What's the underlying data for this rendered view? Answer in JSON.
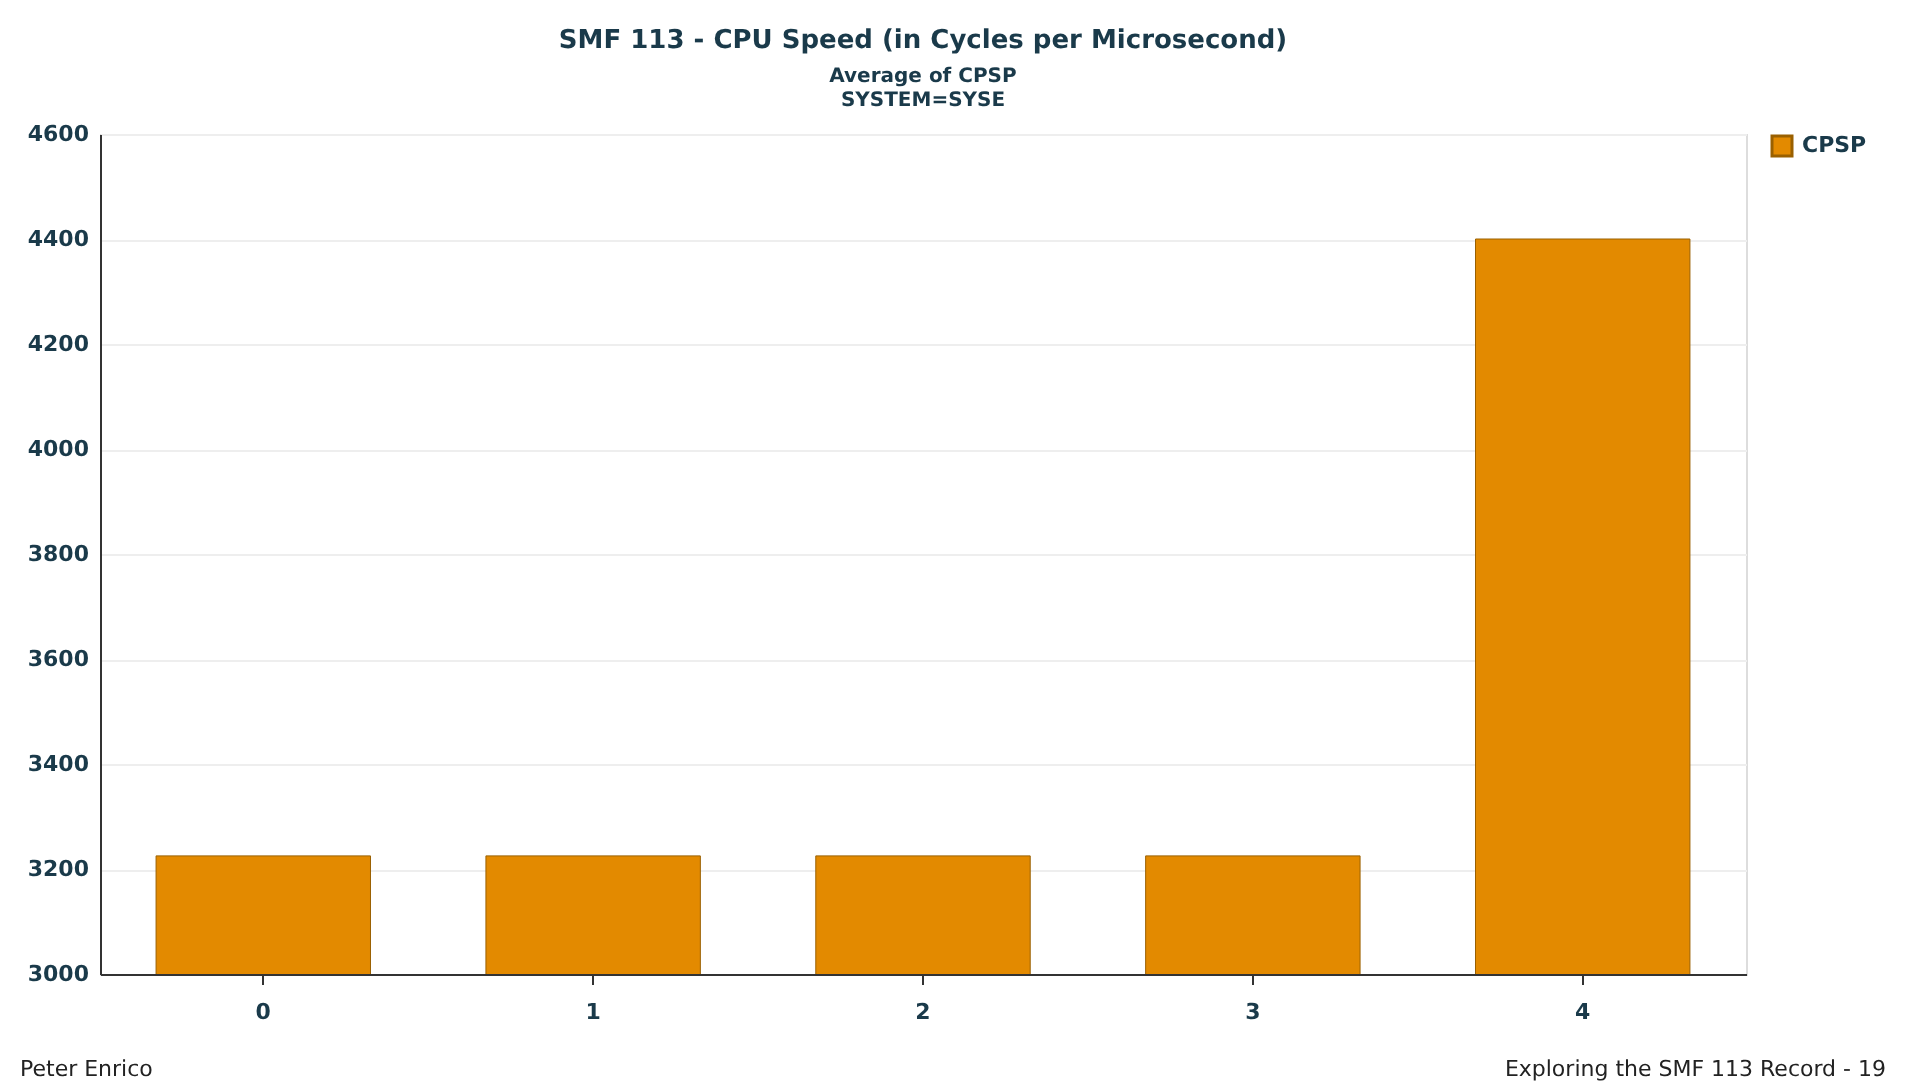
{
  "chart_data": {
    "type": "bar",
    "title": "SMF 113 - CPU Speed (in Cycles per Microsecond)",
    "subtitle": "Average of CPSP\nSYSTEM=SYSE",
    "categories": [
      "0",
      "1",
      "2",
      "3",
      "4"
    ],
    "series": [
      {
        "name": "CPSP",
        "color": "#e38a00",
        "values": [
          3225,
          3225,
          3225,
          3225,
          4400
        ]
      }
    ],
    "ylim": [
      3000,
      4600
    ],
    "yticks": [
      3000,
      3200,
      3400,
      3600,
      3800,
      4000,
      4200,
      4400,
      4600
    ],
    "grid": "y",
    "legend": "top right",
    "annotations": [
      "Peter Enrico",
      "Exploring the SMF 113 Record - 19"
    ]
  }
}
